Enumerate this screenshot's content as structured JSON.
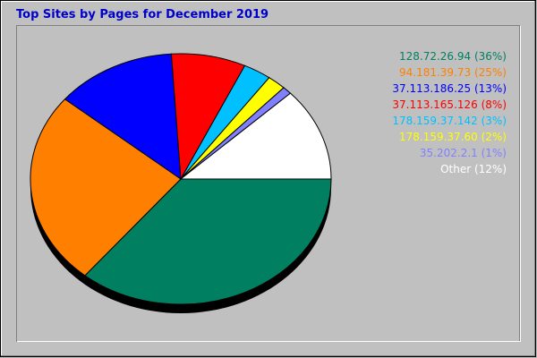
{
  "chart_data": {
    "type": "pie",
    "title": "Top Sites by Pages for December 2019",
    "slices": [
      {
        "label": "128.72.26.94 (36%)",
        "value": 36,
        "color": "#008060"
      },
      {
        "label": "94.181.39.73 (25%)",
        "value": 25,
        "color": "#ff8000"
      },
      {
        "label": "37.113.186.25 (13%)",
        "value": 13,
        "color": "#0000ff"
      },
      {
        "label": "37.113.165.126 (8%)",
        "value": 8,
        "color": "#ff0000"
      },
      {
        "label": "178.159.37.142 (3%)",
        "value": 3,
        "color": "#00c0ff"
      },
      {
        "label": "178.159.37.60 (2%)",
        "value": 2,
        "color": "#ffff00"
      },
      {
        "label": "35.202.2.1 (1%)",
        "value": 1,
        "color": "#8080ff"
      },
      {
        "label": "Other (12%)",
        "value": 12,
        "color": "#ffffff"
      }
    ],
    "legend_placement": "right",
    "title_color": "#0000cc",
    "background_color": "#c0c0c0"
  }
}
